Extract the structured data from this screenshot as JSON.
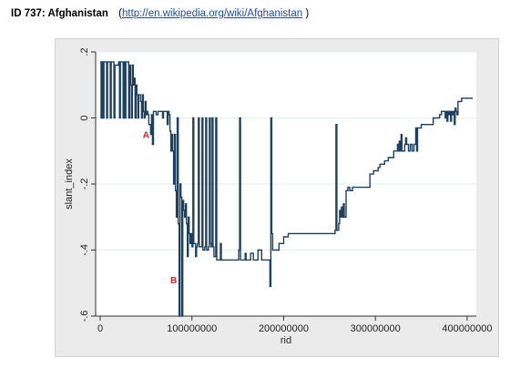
{
  "header": {
    "id_title": "ID 737: Afghanistan",
    "paren_open": "(",
    "link": "http://en.wikipedia.org/wiki/Afghanistan",
    "paren_close": " )"
  },
  "colors": {
    "line": "#1f3f5f",
    "annotation": "#dd2222",
    "plot_bg": "#ffffff",
    "frame_bg": "#ebebeb"
  },
  "chart_data": {
    "type": "line",
    "title": "",
    "xlabel": "rid",
    "ylabel": "slant_index",
    "xlim": [
      -5000000,
      410000000
    ],
    "ylim": [
      -0.6,
      0.2
    ],
    "x_ticks": [
      0,
      100000000,
      200000000,
      300000000,
      400000000
    ],
    "x_tick_labels": [
      "0",
      "100000000",
      "200000000",
      "300000000",
      "400000000"
    ],
    "y_ticks": [
      0.2,
      0,
      -0.2,
      -0.4,
      -0.6
    ],
    "y_tick_labels": [
      ".2",
      "0",
      "-.2",
      "-.4",
      "-.6"
    ],
    "grid": true,
    "annotations": [
      {
        "label": "A",
        "x": 50000000,
        "y": -0.06
      },
      {
        "label": "B",
        "x": 80000000,
        "y": -0.5
      }
    ],
    "series": [
      {
        "values": [
          [
            0,
            0.17
          ],
          [
            1000000,
            0
          ],
          [
            2000000,
            0.17
          ],
          [
            3000000,
            0
          ],
          [
            4000000,
            0.17
          ],
          [
            6000000,
            0.17
          ],
          [
            7000000,
            0
          ],
          [
            8000000,
            0.17
          ],
          [
            10000000,
            0.17
          ],
          [
            11000000,
            0
          ],
          [
            12000000,
            0.17
          ],
          [
            14000000,
            0.17
          ],
          [
            15000000,
            0
          ],
          [
            16000000,
            0.16
          ],
          [
            18000000,
            0.16
          ],
          [
            20000000,
            0.17
          ],
          [
            21000000,
            0
          ],
          [
            22000000,
            0.17
          ],
          [
            24000000,
            0.17
          ],
          [
            25000000,
            0
          ],
          [
            26000000,
            0.17
          ],
          [
            27000000,
            0
          ],
          [
            28000000,
            0.17
          ],
          [
            30000000,
            0.17
          ],
          [
            31000000,
            0
          ],
          [
            32000000,
            0.16
          ],
          [
            33000000,
            0.1
          ],
          [
            34000000,
            0
          ],
          [
            35000000,
            0.16
          ],
          [
            36000000,
            0.1
          ],
          [
            37000000,
            0.12
          ],
          [
            38000000,
            0
          ],
          [
            39000000,
            0.1
          ],
          [
            40000000,
            0.07
          ],
          [
            41000000,
            0
          ],
          [
            42000000,
            0.07
          ],
          [
            44000000,
            0.05
          ],
          [
            45000000,
            0
          ],
          [
            46000000,
            0.07
          ],
          [
            47000000,
            0.02
          ],
          [
            48000000,
            0
          ],
          [
            49000000,
            0.05
          ],
          [
            50000000,
            0.01
          ],
          [
            51000000,
            0.02
          ],
          [
            52000000,
            0.01
          ],
          [
            53000000,
            -0.02
          ],
          [
            55000000,
            -0.05
          ],
          [
            56000000,
            0.01
          ],
          [
            57000000,
            -0.08
          ],
          [
            58000000,
            0.02
          ],
          [
            60000000,
            0.02
          ],
          [
            61000000,
            0.01
          ],
          [
            63000000,
            0.02
          ],
          [
            66000000,
            0.02
          ],
          [
            68000000,
            0
          ],
          [
            69000000,
            0.02
          ],
          [
            72000000,
            0.02
          ],
          [
            73000000,
            -0.02
          ],
          [
            74000000,
            0.02
          ],
          [
            75000000,
            0.01
          ],
          [
            76000000,
            -0.04
          ],
          [
            77000000,
            -0.1
          ],
          [
            78000000,
            -0.05
          ],
          [
            79000000,
            -0.1
          ],
          [
            80000000,
            -0.2
          ],
          [
            81000000,
            -0.05
          ],
          [
            82000000,
            -0.22
          ],
          [
            83000000,
            -0.3
          ],
          [
            84000000,
            0
          ],
          [
            85000000,
            -0.32
          ],
          [
            86000000,
            -0.6
          ],
          [
            87000000,
            -0.2
          ],
          [
            88000000,
            -0.24
          ],
          [
            89000000,
            -0.6
          ],
          [
            90000000,
            -0.25
          ],
          [
            91000000,
            -0.28
          ],
          [
            92000000,
            -0.3
          ],
          [
            93000000,
            -0.26
          ],
          [
            94000000,
            -0.32
          ],
          [
            95000000,
            -0.42
          ],
          [
            96000000,
            -0.3
          ],
          [
            97000000,
            -0.35
          ],
          [
            98000000,
            -0.38
          ],
          [
            99000000,
            -0.35
          ],
          [
            100000000,
            -0.39
          ],
          [
            101000000,
            0
          ],
          [
            102000000,
            -0.38
          ],
          [
            104000000,
            -0.42
          ],
          [
            105000000,
            -0.39
          ],
          [
            106000000,
            -0.38
          ],
          [
            107000000,
            0
          ],
          [
            108000000,
            -0.39
          ],
          [
            110000000,
            -0.39
          ],
          [
            111000000,
            0
          ],
          [
            112000000,
            -0.4
          ],
          [
            114000000,
            -0.39
          ],
          [
            115000000,
            0
          ],
          [
            116000000,
            -0.4
          ],
          [
            118000000,
            -0.39
          ],
          [
            119000000,
            0
          ],
          [
            120000000,
            -0.38
          ],
          [
            121000000,
            -0.39
          ],
          [
            122000000,
            0
          ],
          [
            123000000,
            -0.39
          ],
          [
            124000000,
            -0.42
          ],
          [
            125000000,
            -0.42
          ],
          [
            126000000,
            0
          ],
          [
            127000000,
            -0.43
          ],
          [
            130000000,
            -0.43
          ],
          [
            131000000,
            -0.38
          ],
          [
            132000000,
            -0.43
          ],
          [
            135000000,
            -0.43
          ],
          [
            140000000,
            -0.43
          ],
          [
            148000000,
            -0.43
          ],
          [
            150000000,
            -0.43
          ],
          [
            151000000,
            -0.4
          ],
          [
            152000000,
            0
          ],
          [
            153000000,
            -0.43
          ],
          [
            156000000,
            -0.43
          ],
          [
            158000000,
            -0.41
          ],
          [
            159000000,
            -0.43
          ],
          [
            163000000,
            -0.43
          ],
          [
            164000000,
            -0.41
          ],
          [
            166000000,
            -0.41
          ],
          [
            167000000,
            -0.43
          ],
          [
            170000000,
            -0.43
          ],
          [
            172000000,
            -0.4
          ],
          [
            175000000,
            -0.4
          ],
          [
            176000000,
            -0.43
          ],
          [
            180000000,
            -0.43
          ],
          [
            184000000,
            -0.43
          ],
          [
            185000000,
            -0.51
          ],
          [
            186000000,
            0
          ],
          [
            187000000,
            -0.35
          ],
          [
            188000000,
            -0.4
          ],
          [
            190000000,
            -0.4
          ],
          [
            195000000,
            -0.38
          ],
          [
            200000000,
            -0.36
          ],
          [
            205000000,
            -0.35
          ],
          [
            210000000,
            -0.35
          ],
          [
            225000000,
            -0.35
          ],
          [
            240000000,
            -0.35
          ],
          [
            255000000,
            -0.35
          ],
          [
            256000000,
            -0.34
          ],
          [
            257000000,
            -0.02
          ],
          [
            258000000,
            -0.34
          ],
          [
            260000000,
            -0.32
          ],
          [
            261000000,
            -0.28
          ],
          [
            262000000,
            -0.3
          ],
          [
            263000000,
            -0.27
          ],
          [
            264000000,
            -0.3
          ],
          [
            265000000,
            -0.26
          ],
          [
            266000000,
            -0.3
          ],
          [
            268000000,
            -0.22
          ],
          [
            270000000,
            -0.21
          ],
          [
            272000000,
            -0.22
          ],
          [
            275000000,
            -0.21
          ],
          [
            280000000,
            -0.21
          ],
          [
            290000000,
            -0.21
          ],
          [
            293000000,
            -0.21
          ],
          [
            294000000,
            -0.17
          ],
          [
            296000000,
            -0.17
          ],
          [
            298000000,
            -0.16
          ],
          [
            300000000,
            -0.16
          ],
          [
            302000000,
            -0.16
          ],
          [
            303000000,
            -0.15
          ],
          [
            305000000,
            -0.14
          ],
          [
            308000000,
            -0.14
          ],
          [
            310000000,
            -0.13
          ],
          [
            312000000,
            -0.13
          ],
          [
            314000000,
            -0.12
          ],
          [
            316000000,
            -0.12
          ],
          [
            318000000,
            -0.12
          ],
          [
            320000000,
            -0.1
          ],
          [
            322000000,
            -0.1
          ],
          [
            324000000,
            -0.08
          ],
          [
            325000000,
            -0.1
          ],
          [
            326000000,
            -0.07
          ],
          [
            327000000,
            -0.1
          ],
          [
            328000000,
            -0.05
          ],
          [
            329000000,
            -0.1
          ],
          [
            330000000,
            -0.1
          ],
          [
            332000000,
            -0.08
          ],
          [
            333000000,
            -0.06
          ],
          [
            334000000,
            -0.08
          ],
          [
            336000000,
            -0.1
          ],
          [
            338000000,
            -0.08
          ],
          [
            340000000,
            -0.1
          ],
          [
            342000000,
            -0.08
          ],
          [
            344000000,
            -0.03
          ],
          [
            345000000,
            -0.1
          ],
          [
            346000000,
            -0.03
          ],
          [
            347000000,
            -0.03
          ],
          [
            350000000,
            -0.02
          ],
          [
            355000000,
            -0.02
          ],
          [
            360000000,
            -0.02
          ],
          [
            362000000,
            -0.02
          ],
          [
            363000000,
            0
          ],
          [
            365000000,
            0
          ],
          [
            368000000,
            0
          ],
          [
            370000000,
            0.01
          ],
          [
            372000000,
            0.02
          ],
          [
            375000000,
            0.02
          ],
          [
            376000000,
            0
          ],
          [
            377000000,
            0.02
          ],
          [
            378000000,
            -0.01
          ],
          [
            379000000,
            0.02
          ],
          [
            380000000,
            0.01
          ],
          [
            381000000,
            0.02
          ],
          [
            382000000,
            -0.01
          ],
          [
            383000000,
            0.02
          ],
          [
            384000000,
            0.01
          ],
          [
            385000000,
            0.02
          ],
          [
            386000000,
            -0.02
          ],
          [
            387000000,
            0.03
          ],
          [
            388000000,
            0.02
          ],
          [
            389000000,
            0.01
          ],
          [
            390000000,
            0.05
          ],
          [
            392000000,
            0.05
          ],
          [
            394000000,
            0.06
          ],
          [
            396000000,
            0.06
          ],
          [
            398000000,
            0.06
          ],
          [
            400000000,
            0.06
          ],
          [
            403000000,
            0.06
          ],
          [
            406000000,
            0.06
          ]
        ]
      }
    ]
  }
}
